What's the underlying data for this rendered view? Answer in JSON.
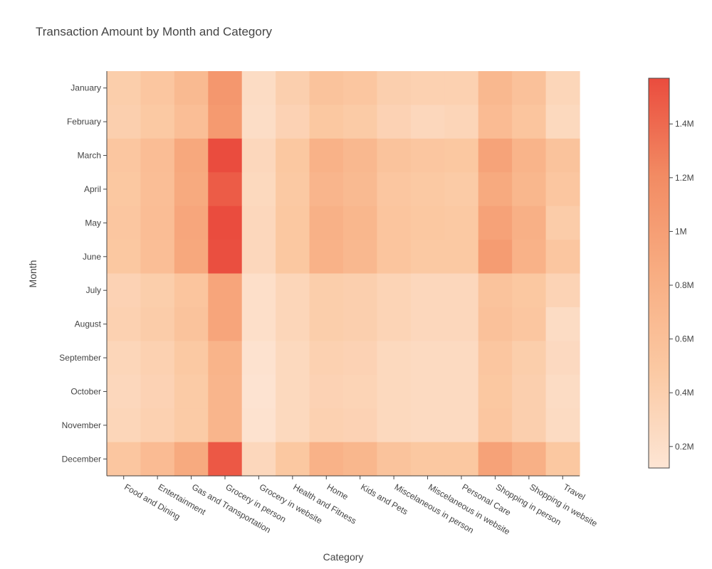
{
  "chart_data": {
    "type": "heatmap",
    "title": "Transaction Amount by Month and Category",
    "xlabel": "Category",
    "ylabel": "Month",
    "categories": [
      "Food and Dining",
      "Entertainment",
      "Gas and Transportation",
      "Grocery in person",
      "Grocery in website",
      "Health and Fitness",
      "Home",
      "Kids and Pets",
      "Miscelaneous in person",
      "Miscelaneous in website",
      "Personal Care",
      "Shopping in person",
      "Shopping in website",
      "Travel"
    ],
    "months": [
      "January",
      "February",
      "March",
      "April",
      "May",
      "June",
      "July",
      "August",
      "September",
      "October",
      "November",
      "December"
    ],
    "values": [
      [
        420000,
        520000,
        680000,
        1080000,
        240000,
        400000,
        560000,
        520000,
        400000,
        380000,
        380000,
        700000,
        580000,
        320000
      ],
      [
        400000,
        480000,
        620000,
        1050000,
        220000,
        360000,
        500000,
        460000,
        360000,
        300000,
        330000,
        660000,
        540000,
        280000
      ],
      [
        520000,
        640000,
        900000,
        1570000,
        300000,
        500000,
        780000,
        700000,
        560000,
        520000,
        500000,
        950000,
        760000,
        560000
      ],
      [
        500000,
        620000,
        880000,
        1480000,
        280000,
        480000,
        740000,
        680000,
        520000,
        480000,
        460000,
        880000,
        720000,
        520000
      ],
      [
        520000,
        640000,
        920000,
        1570000,
        300000,
        500000,
        790000,
        720000,
        540000,
        500000,
        480000,
        960000,
        800000,
        440000
      ],
      [
        500000,
        620000,
        900000,
        1550000,
        300000,
        500000,
        780000,
        700000,
        540000,
        480000,
        480000,
        1030000,
        780000,
        520000
      ],
      [
        360000,
        420000,
        540000,
        930000,
        200000,
        320000,
        420000,
        400000,
        340000,
        300000,
        300000,
        560000,
        500000,
        350000
      ],
      [
        380000,
        440000,
        560000,
        930000,
        200000,
        320000,
        420000,
        400000,
        340000,
        300000,
        300000,
        580000,
        520000,
        240000
      ],
      [
        320000,
        380000,
        480000,
        760000,
        160000,
        280000,
        380000,
        360000,
        280000,
        260000,
        260000,
        520000,
        420000,
        270000
      ],
      [
        300000,
        360000,
        460000,
        740000,
        140000,
        280000,
        360000,
        340000,
        280000,
        260000,
        260000,
        500000,
        400000,
        240000
      ],
      [
        320000,
        380000,
        460000,
        740000,
        160000,
        280000,
        380000,
        360000,
        280000,
        260000,
        260000,
        520000,
        400000,
        250000
      ],
      [
        520000,
        660000,
        880000,
        1500000,
        300000,
        500000,
        780000,
        720000,
        560000,
        500000,
        500000,
        960000,
        800000,
        500000
      ]
    ],
    "zrange": [
      120000,
      1570000
    ],
    "colorscale": [
      "#fde5d4",
      "#fbc9a3",
      "#f8ad82",
      "#f28b63",
      "#ea4c3e"
    ],
    "colorbar_ticks": [
      {
        "value": 200000,
        "label": "0.2M"
      },
      {
        "value": 400000,
        "label": "0.4M"
      },
      {
        "value": 600000,
        "label": "0.6M"
      },
      {
        "value": 800000,
        "label": "0.8M"
      },
      {
        "value": 1000000,
        "label": "1M"
      },
      {
        "value": 1200000,
        "label": "1.2M"
      },
      {
        "value": 1400000,
        "label": "1.4M"
      }
    ]
  }
}
